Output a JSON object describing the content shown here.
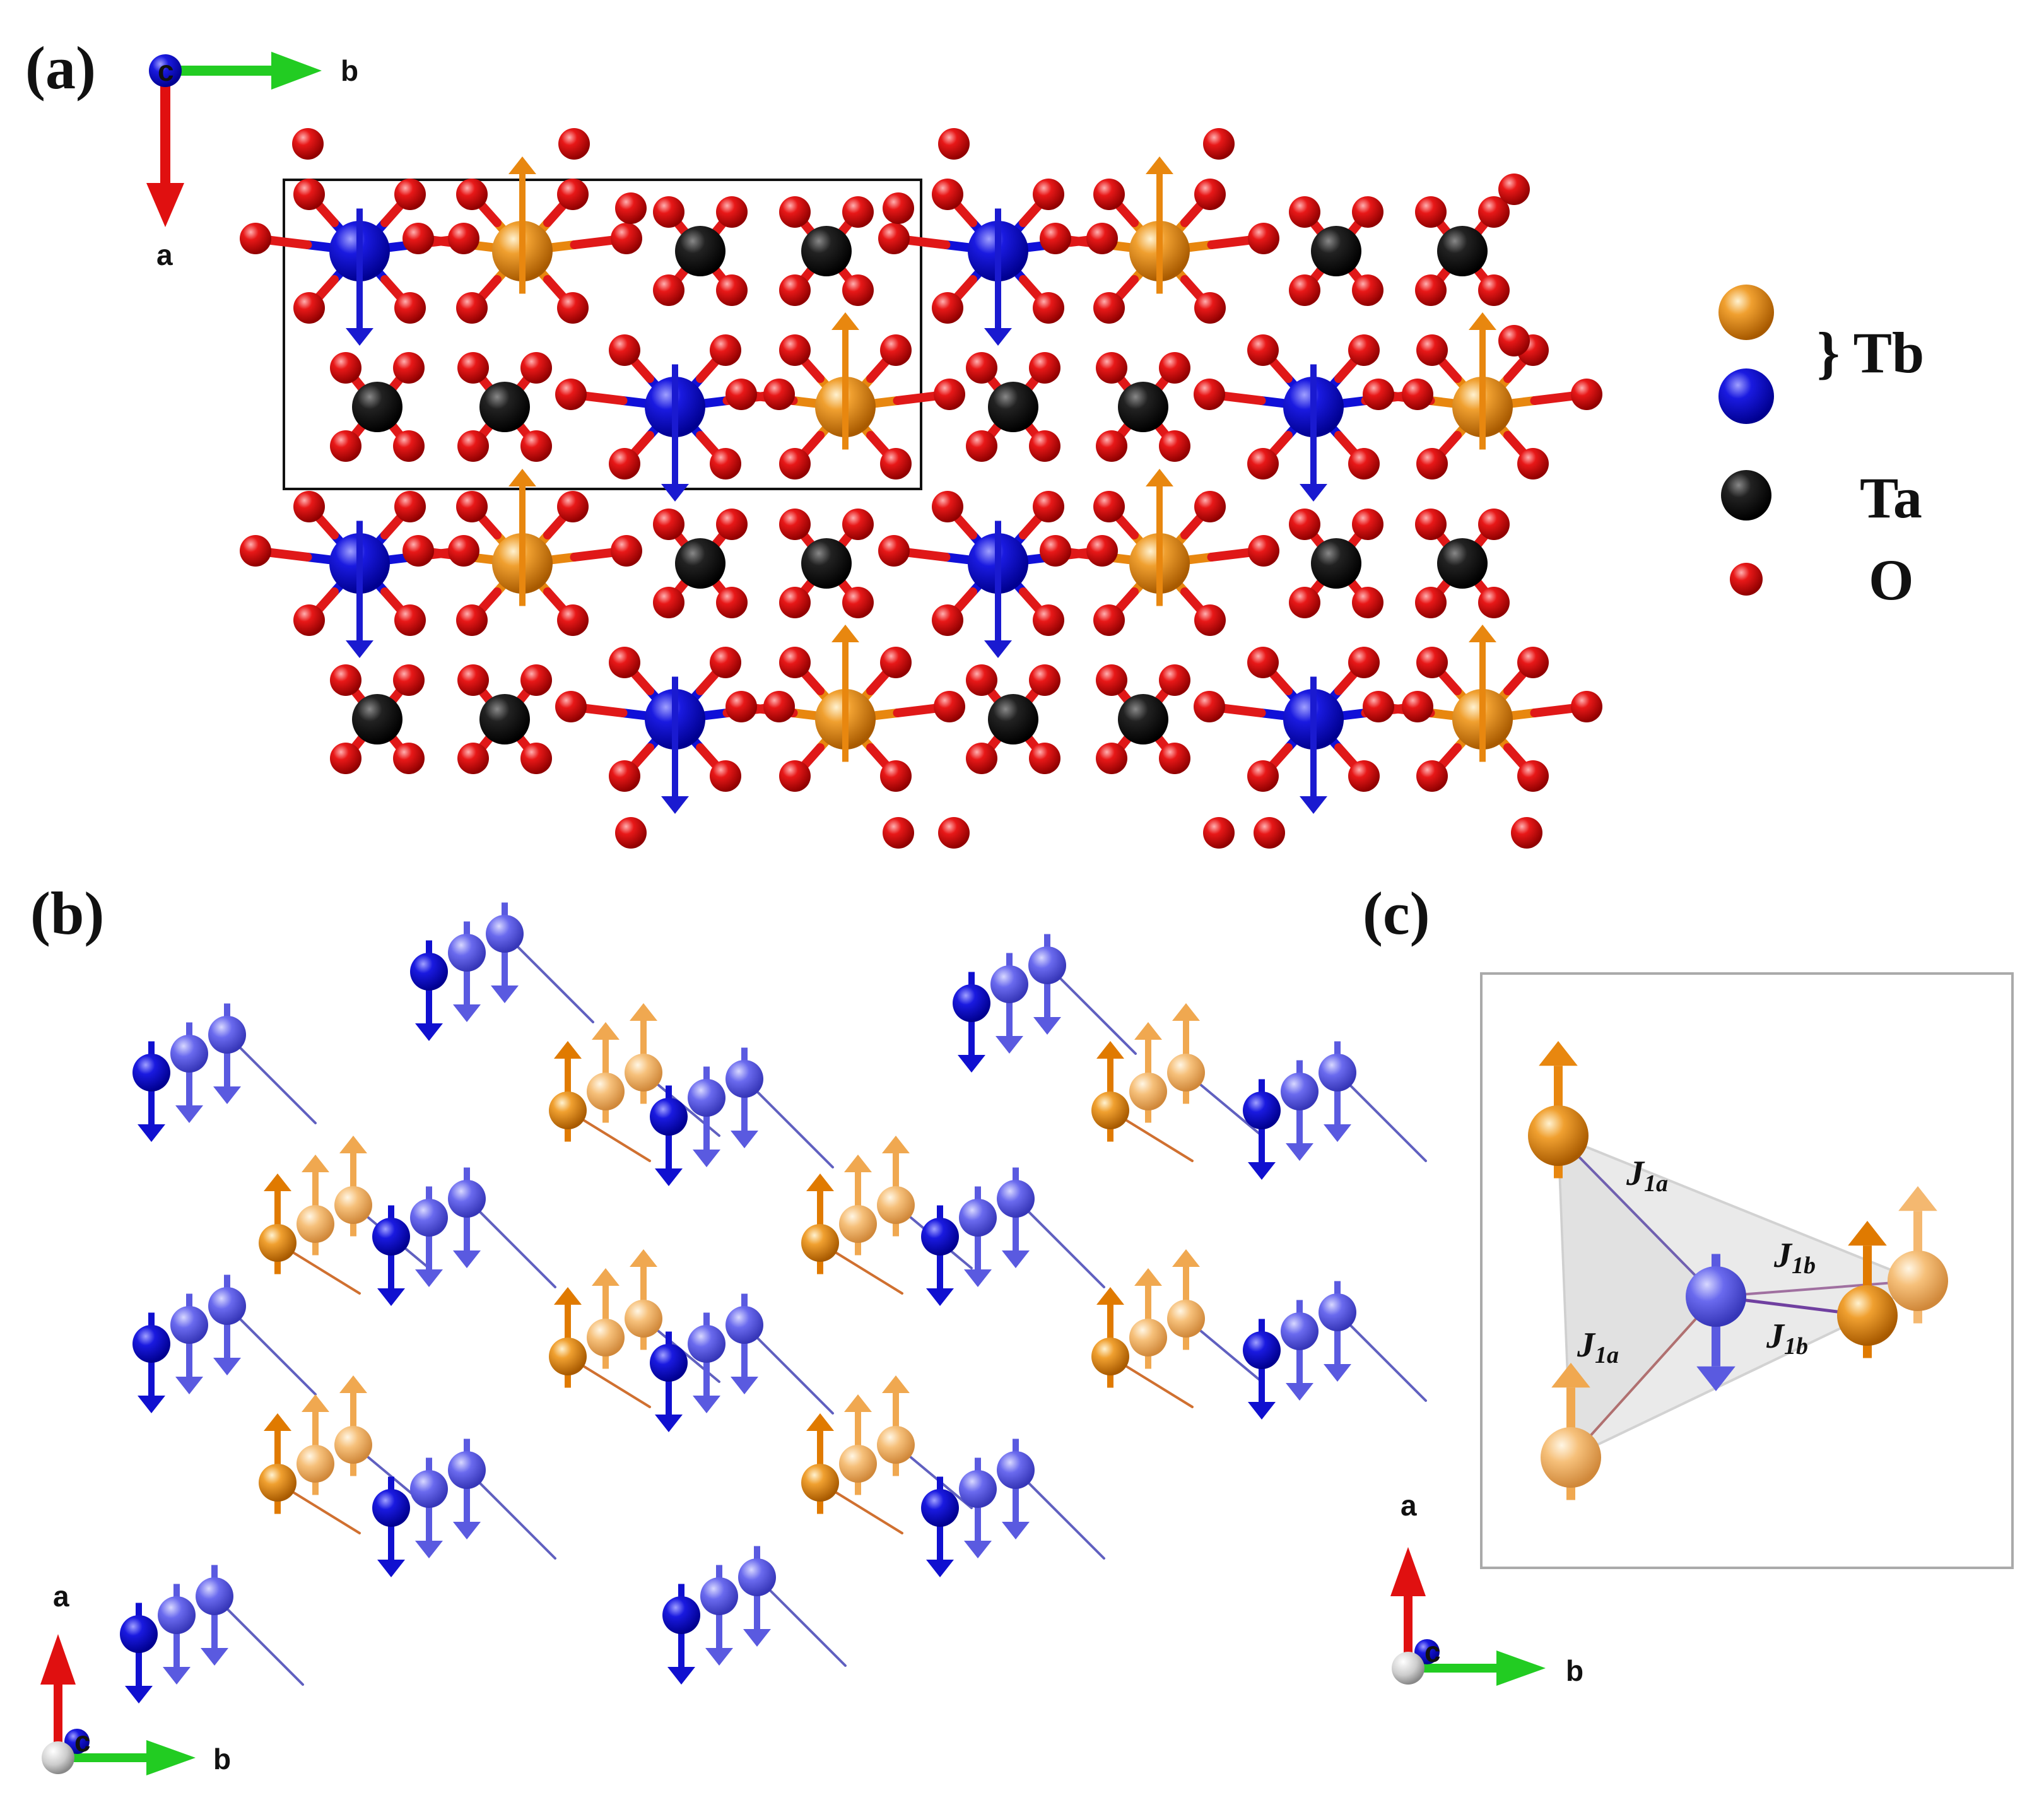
{
  "panels": {
    "a": {
      "label": "(a)",
      "axes": {
        "x": "b",
        "y": "a",
        "z": "c"
      }
    },
    "b": {
      "label": "(b)",
      "axes": {
        "x": "b",
        "y": "a",
        "z": "c"
      }
    },
    "c": {
      "label": "(c)",
      "axes": {
        "x": "b",
        "y": "a",
        "z": "c"
      }
    }
  },
  "legend": {
    "tb_label": "} Tb",
    "ta_label": "Ta",
    "o_label": "O"
  },
  "couplings": {
    "j1a_main": "J",
    "j1a_sub": "1a",
    "j1b_main": "J",
    "j1b_sub": "1b"
  },
  "colors": {
    "tb_orange": "#e8870f",
    "tb_blue": "#1010d8",
    "ta": "#111111",
    "o": "#e01818",
    "axis_a": "#e01010",
    "axis_b": "#22cc22",
    "axis_c": "#1010c0"
  }
}
